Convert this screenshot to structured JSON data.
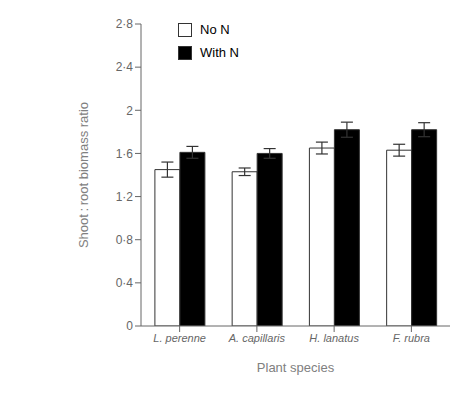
{
  "chart_data": {
    "type": "bar",
    "xlabel": "Plant species",
    "ylabel": "Shoot : root biomass ratio",
    "categories": [
      "L. perenne",
      "A. capillaris",
      "H. lanatus",
      "F. rubra"
    ],
    "series": [
      {
        "name": "No N",
        "color": "#ffffff",
        "values": [
          1.45,
          1.43,
          1.65,
          1.63
        ],
        "errors": [
          0.07,
          0.035,
          0.055,
          0.055
        ]
      },
      {
        "name": "With N",
        "color": "#000000",
        "values": [
          1.61,
          1.6,
          1.82,
          1.82
        ],
        "errors": [
          0.055,
          0.045,
          0.07,
          0.065
        ]
      }
    ],
    "ylim": [
      0,
      2.8
    ],
    "yticks": [
      0,
      {
        "value": 0.4,
        "label": "0·4"
      },
      {
        "value": 0.8,
        "label": "0·8"
      },
      {
        "value": 1.2,
        "label": "1·2"
      },
      {
        "value": 1.6,
        "label": "1·6"
      },
      2,
      {
        "value": 2.4,
        "label": "2·4"
      },
      {
        "value": 2.8,
        "label": "2·8"
      }
    ],
    "grid": false,
    "legend": "upper left"
  }
}
